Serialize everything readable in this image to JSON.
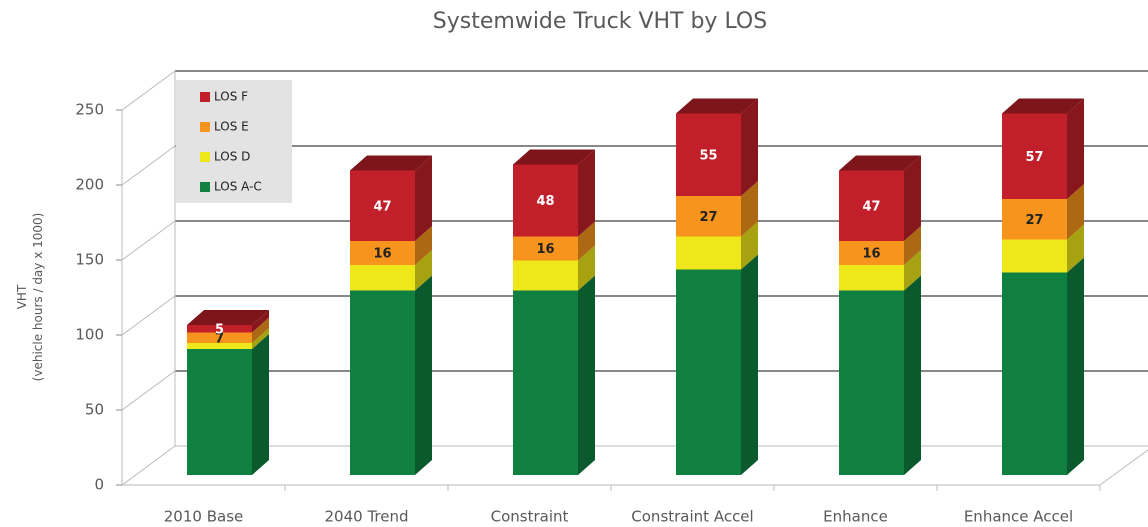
{
  "chart_data": {
    "type": "bar3d_stacked",
    "title": "Systemwide Truck VHT by LOS",
    "ylabel": [
      "VHT",
      "(vehicle hours / day  x 1000)"
    ],
    "categories": [
      "2010 Base",
      "2040 Trend",
      "Constraint",
      "Constraint Accel",
      "Enhance",
      "Enhance Accel"
    ],
    "series": [
      {
        "name": "LOS A-C",
        "color": "#0f8040",
        "values": [
          84,
          123,
          123,
          137,
          123,
          135
        ],
        "show_labels": false
      },
      {
        "name": "LOS D",
        "color": "#eee81a",
        "values": [
          4,
          17,
          20,
          22,
          17,
          22
        ],
        "show_labels": false
      },
      {
        "name": "LOS E",
        "color": "#f7941d",
        "values": [
          7,
          16,
          16,
          27,
          16,
          27
        ],
        "show_labels": true
      },
      {
        "name": "LOS F",
        "color": "#c1202a",
        "values": [
          5,
          47,
          48,
          55,
          47,
          57
        ],
        "show_labels": true
      }
    ],
    "ylim": [
      0,
      250
    ],
    "yticks": [
      0,
      50,
      100,
      150,
      200,
      250
    ],
    "grid": true,
    "legend": "top-left"
  }
}
